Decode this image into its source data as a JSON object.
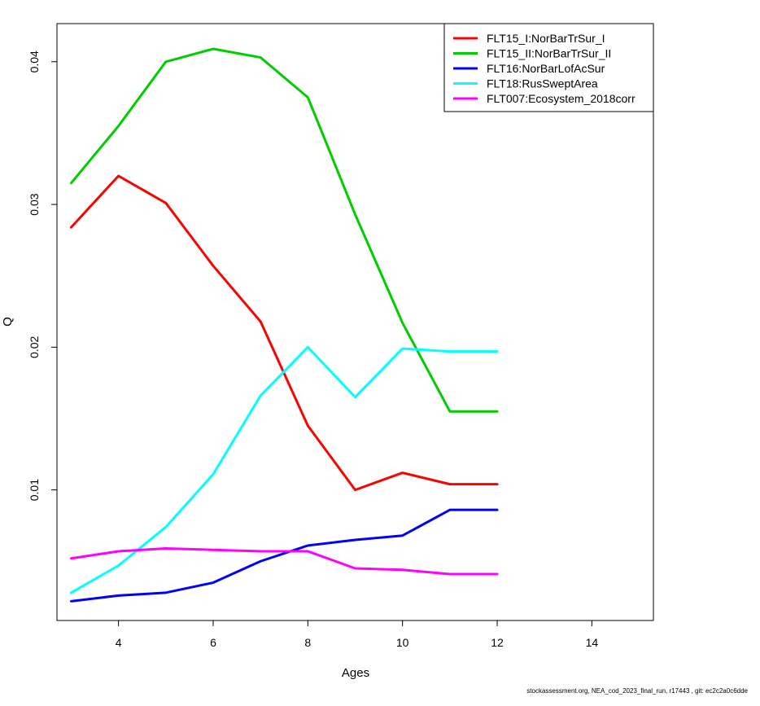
{
  "footer": "stockassessment.org, NEA_cod_2023_final_run, r17443 , git: ec2c2a0c6dde",
  "chart_data": {
    "type": "line",
    "xlabel": "Ages",
    "ylabel": "Q",
    "xlim": [
      2.7,
      15.3
    ],
    "ylim": [
      0.00085,
      0.04267
    ],
    "xticks": [
      4,
      6,
      8,
      10,
      12,
      14
    ],
    "yticks": [
      0.01,
      0.02,
      0.03,
      0.04
    ],
    "grid": false,
    "legend_position": "top-right",
    "x": [
      3,
      4,
      5,
      6,
      7,
      8,
      9,
      10,
      11,
      12
    ],
    "series": [
      {
        "name": "FLT15_I:NorBarTrSur_I",
        "color": "#ff0000",
        "values": [
          0.0284,
          0.032,
          0.0301,
          0.0257,
          0.0218,
          0.0145,
          0.01,
          0.0112,
          0.0104,
          0.0104
        ]
      },
      {
        "name": "FLT15_II:NorBarTrSur_II",
        "color": "#00cd00",
        "values": [
          0.0315,
          0.0355,
          0.04,
          0.0409,
          0.0403,
          0.0375,
          0.0293,
          0.0217,
          0.0155,
          0.0155
        ]
      },
      {
        "name": "FLT16:NorBarLofAcSur",
        "color": "#0000ff",
        "values": [
          0.0022,
          0.0026,
          0.0028,
          0.0035,
          0.005,
          0.0061,
          0.0065,
          0.0068,
          0.0086,
          0.0086
        ]
      },
      {
        "name": "FLT18:RusSweptArea",
        "color": "#00ffff",
        "values": [
          0.0028,
          0.0047,
          0.0074,
          0.0111,
          0.0166,
          0.02,
          0.0165,
          0.0199,
          0.0197,
          0.0197
        ]
      },
      {
        "name": "FLT007:Ecosystem_2018corr",
        "color": "#ff00ff",
        "values": [
          0.0052,
          0.0057,
          0.0059,
          0.0058,
          0.0057,
          0.0057,
          0.0045,
          0.0044,
          0.0041,
          0.0041
        ]
      }
    ]
  }
}
